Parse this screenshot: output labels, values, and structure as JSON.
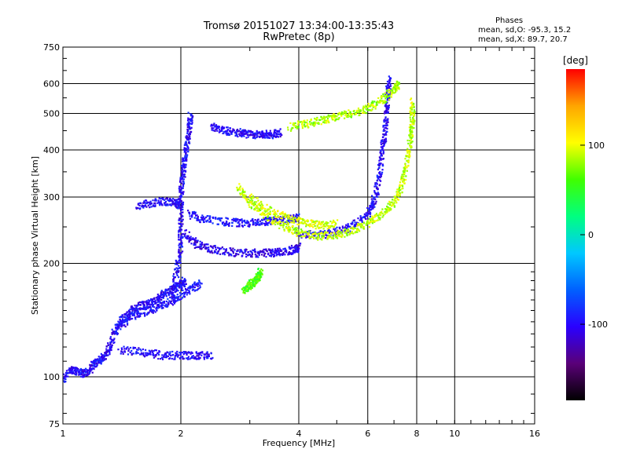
{
  "header": {
    "title_line1": "Tromsø 20151027 13:34:00-13:35:43",
    "title_line2": "RwPretec (8p)",
    "stats_title": "Phases",
    "stats_o": "mean, sd,O: -95.3, 15.2",
    "stats_x": "mean, sd,X:  89.7, 20.7"
  },
  "colorbar": {
    "unit_label": "[deg]",
    "ticks": [
      {
        "value": 100,
        "label": "100"
      },
      {
        "value": 0,
        "label": "0"
      },
      {
        "value": -100,
        "label": "-100"
      }
    ],
    "range": [
      -185,
      185
    ],
    "colors": [
      "#000000",
      "#5a0078",
      "#2a00ff",
      "#0060ff",
      "#00c8ff",
      "#00ff80",
      "#40ff00",
      "#ffff00",
      "#ffa500",
      "#ff0000"
    ]
  },
  "chart_data": {
    "type": "scatter",
    "title": "Tromsø 20151027 13:34:00-13:35:43",
    "subtitle": "RwPretec (8p)",
    "xlabel": "Frequency [MHz]",
    "ylabel": "Stationary phase Virtual Height [km]",
    "xscale": "log2",
    "yscale": "log",
    "xlim": [
      1,
      16
    ],
    "ylim": [
      75,
      750
    ],
    "xticks": [
      1,
      2,
      4,
      6,
      8,
      10,
      16
    ],
    "xtick_labels": [
      "1",
      "2",
      "4",
      "6",
      "8",
      "10",
      "16"
    ],
    "yticks": [
      75,
      100,
      200,
      300,
      400,
      500,
      600,
      750
    ],
    "ytick_labels": [
      "75",
      "100",
      "200",
      "300",
      "400",
      "500",
      "600",
      "750"
    ],
    "grid": true,
    "traces": [
      {
        "name": "",
        "polarization": "O",
        "phase_mean": -100,
        "points": [
          [
            1.0,
            98
          ],
          [
            1.05,
            105
          ],
          [
            1.1,
            103
          ],
          [
            1.15,
            102
          ],
          [
            1.2,
            108
          ],
          [
            1.25,
            112
          ],
          [
            1.3,
            115
          ],
          [
            1.35,
            130
          ],
          [
            1.4,
            140
          ],
          [
            1.5,
            150
          ],
          [
            1.6,
            155
          ],
          [
            1.7,
            158
          ],
          [
            1.8,
            165
          ],
          [
            1.9,
            170
          ],
          [
            2.0,
            175
          ],
          [
            2.05,
            180
          ]
        ]
      },
      {
        "name": "",
        "polarization": "O",
        "phase_mean": -95,
        "points": [
          [
            1.38,
            135
          ],
          [
            1.5,
            145
          ],
          [
            1.65,
            150
          ],
          [
            1.8,
            155
          ],
          [
            1.95,
            162
          ],
          [
            2.1,
            170
          ],
          [
            2.25,
            178
          ]
        ]
      },
      {
        "name": "",
        "polarization": "O",
        "phase_mean": -100,
        "points": [
          [
            1.4,
            118
          ],
          [
            1.6,
            116
          ],
          [
            1.8,
            114
          ],
          [
            2.0,
            114
          ],
          [
            2.2,
            114
          ],
          [
            2.4,
            114
          ]
        ]
      },
      {
        "name": "",
        "polarization": "O",
        "phase_mean": -100,
        "points": [
          [
            1.55,
            285
          ],
          [
            1.7,
            290
          ],
          [
            1.85,
            292
          ],
          [
            1.95,
            290
          ],
          [
            2.0,
            285
          ]
        ]
      },
      {
        "name": "",
        "polarization": "O",
        "phase_mean": -100,
        "points": [
          [
            1.9,
            160
          ],
          [
            1.95,
            190
          ],
          [
            2.0,
            220
          ],
          [
            2.0,
            260
          ],
          [
            2.0,
            300
          ],
          [
            2.02,
            340
          ],
          [
            2.05,
            380
          ],
          [
            2.08,
            420
          ],
          [
            2.1,
            460
          ],
          [
            2.12,
            500
          ]
        ]
      },
      {
        "name": "",
        "polarization": "O",
        "phase_mean": -105,
        "points": [
          [
            2.05,
            240
          ],
          [
            2.2,
            225
          ],
          [
            2.4,
            218
          ],
          [
            2.7,
            214
          ],
          [
            3.0,
            213
          ],
          [
            3.3,
            213
          ],
          [
            3.6,
            214
          ],
          [
            3.9,
            218
          ],
          [
            4.0,
            222
          ]
        ]
      },
      {
        "name": "",
        "polarization": "O",
        "phase_mean": -95,
        "points": [
          [
            2.1,
            270
          ],
          [
            2.3,
            262
          ],
          [
            2.6,
            258
          ],
          [
            2.9,
            256
          ],
          [
            3.2,
            258
          ],
          [
            3.5,
            260
          ],
          [
            3.8,
            262
          ],
          [
            4.0,
            265
          ]
        ]
      },
      {
        "name": "",
        "polarization": "O",
        "phase_mean": -100,
        "points": [
          [
            2.4,
            460
          ],
          [
            2.6,
            450
          ],
          [
            2.8,
            445
          ],
          [
            3.0,
            440
          ],
          [
            3.2,
            440
          ],
          [
            3.4,
            440
          ],
          [
            3.6,
            445
          ]
        ]
      },
      {
        "name": "",
        "polarization": "O",
        "phase_mean": -100,
        "points": [
          [
            4.0,
            240
          ],
          [
            4.5,
            238
          ],
          [
            5.0,
            242
          ],
          [
            5.5,
            252
          ],
          [
            6.0,
            270
          ],
          [
            6.2,
            290
          ],
          [
            6.4,
            330
          ],
          [
            6.5,
            380
          ],
          [
            6.6,
            430
          ],
          [
            6.7,
            500
          ],
          [
            6.75,
            560
          ],
          [
            6.8,
            620
          ]
        ]
      },
      {
        "name": "",
        "polarization": "X",
        "phase_mean": 90,
        "points": [
          [
            2.8,
            320
          ],
          [
            3.0,
            290
          ],
          [
            3.3,
            268
          ],
          [
            3.7,
            250
          ],
          [
            4.0,
            242
          ],
          [
            4.5,
            236
          ],
          [
            5.0,
            238
          ],
          [
            5.5,
            245
          ],
          [
            6.0,
            255
          ],
          [
            6.5,
            270
          ],
          [
            7.0,
            290
          ],
          [
            7.3,
            320
          ],
          [
            7.5,
            360
          ],
          [
            7.7,
            420
          ],
          [
            7.8,
            480
          ],
          [
            7.8,
            540
          ]
        ]
      },
      {
        "name": "",
        "polarization": "X",
        "phase_mean": 95,
        "points": [
          [
            3.0,
            300
          ],
          [
            3.4,
            275
          ],
          [
            3.8,
            262
          ],
          [
            4.2,
            255
          ],
          [
            4.6,
            252
          ],
          [
            5.0,
            255
          ]
        ]
      },
      {
        "name": "",
        "polarization": "X",
        "phase_mean": 85,
        "points": [
          [
            3.8,
            460
          ],
          [
            4.2,
            470
          ],
          [
            4.6,
            480
          ],
          [
            5.0,
            490
          ],
          [
            5.5,
            500
          ],
          [
            6.0,
            515
          ],
          [
            6.5,
            540
          ],
          [
            7.0,
            580
          ],
          [
            7.2,
            600
          ]
        ]
      },
      {
        "name": "",
        "polarization": "X",
        "phase_mean": 60,
        "points": [
          [
            2.9,
            170
          ],
          [
            3.0,
            175
          ],
          [
            3.1,
            180
          ],
          [
            3.15,
            185
          ],
          [
            3.2,
            190
          ]
        ]
      }
    ]
  }
}
